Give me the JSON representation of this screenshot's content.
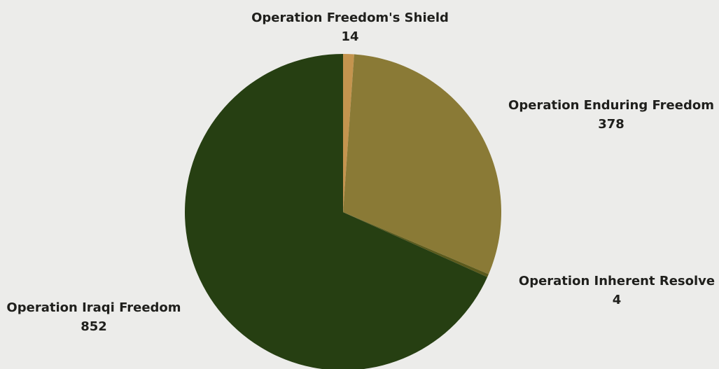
{
  "chart_data": {
    "type": "pie",
    "title": "",
    "slices": [
      {
        "label": "Operation Freedom's Shield",
        "value": 14,
        "display_value": "14",
        "color": "#c4944e"
      },
      {
        "label": "Operation Enduring Freedom",
        "value": 378,
        "display_value": "378",
        "color": "#8a7a36"
      },
      {
        "label": "Operation Inherent Resolve",
        "value": 4,
        "display_value": "4",
        "color": "#5b5a1c"
      },
      {
        "label": "Operation Iraqi Freedom",
        "value": 852,
        "display_value": "852",
        "color": "#263f12"
      }
    ],
    "start": "top",
    "direction": "clockwise",
    "legend": "none",
    "background": "#ececea"
  }
}
